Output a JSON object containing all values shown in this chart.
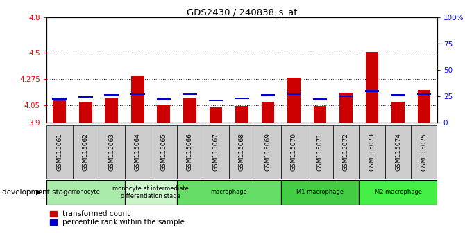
{
  "title": "GDS2430 / 240838_s_at",
  "samples": [
    "GSM115061",
    "GSM115062",
    "GSM115063",
    "GSM115064",
    "GSM115065",
    "GSM115066",
    "GSM115067",
    "GSM115068",
    "GSM115069",
    "GSM115070",
    "GSM115071",
    "GSM115072",
    "GSM115073",
    "GSM115074",
    "GSM115075"
  ],
  "red_values": [
    4.115,
    4.075,
    4.11,
    4.295,
    4.055,
    4.105,
    4.03,
    4.04,
    4.075,
    4.285,
    4.04,
    4.155,
    4.505,
    4.075,
    4.175
  ],
  "blue_percentile": [
    22,
    24,
    26,
    27,
    22,
    27,
    21,
    23,
    26,
    27,
    22,
    25,
    30,
    26,
    27
  ],
  "ylim_left": [
    3.9,
    4.8
  ],
  "ylim_right": [
    0,
    100
  ],
  "yticks_left": [
    3.9,
    4.05,
    4.275,
    4.5,
    4.8
  ],
  "yticks_right": [
    0,
    25,
    50,
    75,
    100
  ],
  "hlines": [
    4.05,
    4.275,
    4.5
  ],
  "bar_bottom": 3.9,
  "bar_width": 0.5,
  "red_color": "#cc0000",
  "blue_color": "#0000cc",
  "groups": [
    {
      "label": "monocyte",
      "start": 0,
      "end": 3,
      "color": "#aaeaaa"
    },
    {
      "label": "monocyte at intermediate\ndifferentiation stage",
      "start": 3,
      "end": 5,
      "color": "#ccf5cc"
    },
    {
      "label": "macrophage",
      "start": 5,
      "end": 9,
      "color": "#66dd66"
    },
    {
      "label": "M1 macrophage",
      "start": 9,
      "end": 12,
      "color": "#44cc44"
    },
    {
      "label": "M2 macrophage",
      "start": 12,
      "end": 15,
      "color": "#44ee44"
    }
  ],
  "legend_labels": [
    "transformed count",
    "percentile rank within the sample"
  ],
  "dev_stage_label": "development stage",
  "bg_color": "#ffffff",
  "xtick_bg": "#cccccc"
}
